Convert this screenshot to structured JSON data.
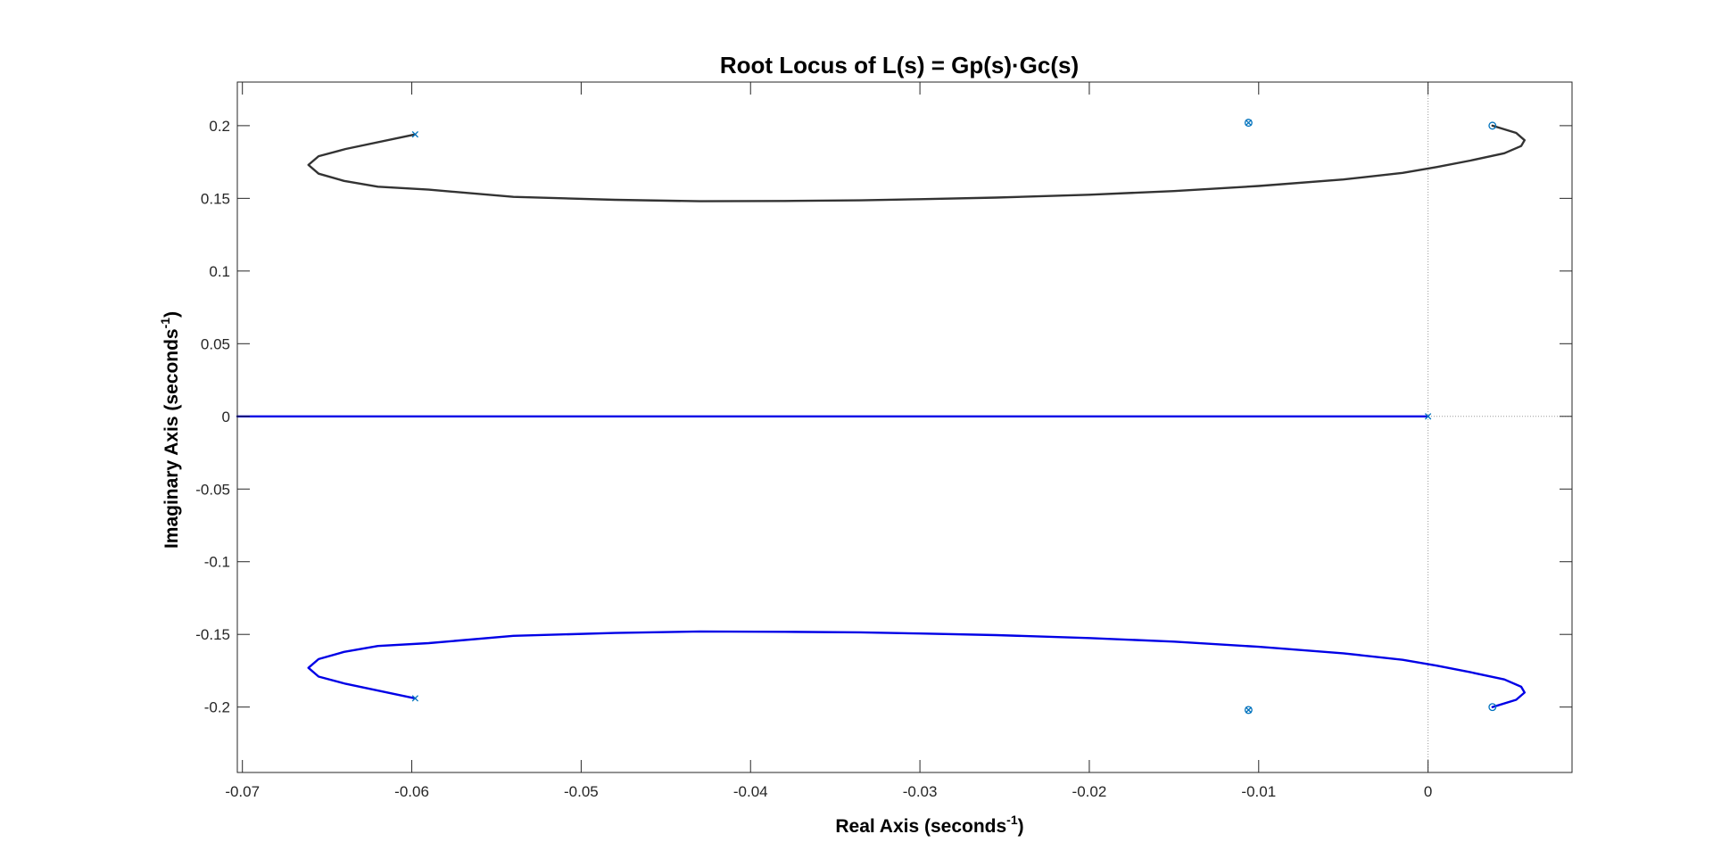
{
  "chart_data": {
    "type": "line",
    "title": "Root Locus of L(s) = Gp(s)·Gc(s)",
    "xlabel": {
      "text": "Real Axis (seconds",
      "sup": "-1",
      "suffix": ")"
    },
    "ylabel": {
      "text": "Imaginary Axis (seconds",
      "sup": "-1",
      "suffix": ")"
    },
    "xlim": [
      -0.0703,
      0.0085
    ],
    "ylim": [
      -0.245,
      0.23
    ],
    "xticks": [
      -0.07,
      -0.06,
      -0.05,
      -0.04,
      -0.03,
      -0.02,
      -0.01,
      0
    ],
    "xtick_labels": [
      "-0.07",
      "-0.06",
      "-0.05",
      "-0.04",
      "-0.03",
      "-0.02",
      "-0.01",
      "0"
    ],
    "yticks": [
      0.2,
      0.15,
      0.1,
      0.05,
      0,
      -0.05,
      -0.1,
      -0.15,
      -0.2
    ],
    "ytick_labels": [
      "0.2",
      "0.15",
      "0.1",
      "0.05",
      "0",
      "-0.05",
      "-0.1",
      "-0.15",
      "-0.2"
    ],
    "grid": false,
    "colors": {
      "upper_branch": "#333333",
      "lower_branch": "#0000e6",
      "real_axis_branch": "#0000e6",
      "markers": "#0072bd",
      "reference_lines": "#9a9a9a"
    },
    "series": [
      {
        "x": [
          -0.0598,
          -0.0639,
          -0.0655,
          -0.0661,
          -0.0655,
          -0.064,
          -0.062,
          -0.059,
          -0.054,
          -0.048,
          -0.043,
          -0.038,
          -0.0335,
          -0.03,
          -0.0255,
          -0.02,
          -0.015,
          -0.01,
          -0.005,
          -0.0015,
          0.0005,
          0.0025,
          0.0045,
          0.0055,
          0.0057,
          0.0052,
          0.0038
        ],
        "y": [
          0.194,
          0.184,
          0.179,
          0.173,
          0.167,
          0.162,
          0.158,
          0.156,
          0.151,
          0.149,
          0.148,
          0.1482,
          0.1486,
          0.1494,
          0.1505,
          0.1525,
          0.155,
          0.1585,
          0.163,
          0.1675,
          0.1715,
          0.176,
          0.181,
          0.186,
          0.19,
          0.195,
          0.2
        ]
      },
      {
        "x": [
          -0.0598,
          -0.0639,
          -0.0655,
          -0.0661,
          -0.0655,
          -0.064,
          -0.062,
          -0.059,
          -0.054,
          -0.048,
          -0.043,
          -0.038,
          -0.0335,
          -0.03,
          -0.0255,
          -0.02,
          -0.015,
          -0.01,
          -0.005,
          -0.0015,
          0.0005,
          0.0025,
          0.0045,
          0.0055,
          0.0057,
          0.0052,
          0.0038
        ],
        "y": [
          -0.194,
          -0.184,
          -0.179,
          -0.173,
          -0.167,
          -0.162,
          -0.158,
          -0.156,
          -0.151,
          -0.149,
          -0.148,
          -0.1482,
          -0.1486,
          -0.1494,
          -0.1505,
          -0.1525,
          -0.155,
          -0.1585,
          -0.163,
          -0.1675,
          -0.1715,
          -0.176,
          -0.181,
          -0.186,
          -0.19,
          -0.195,
          -0.2
        ]
      },
      {
        "x": [
          -0.0703,
          0
        ],
        "y": [
          0,
          0
        ]
      }
    ],
    "poles": [
      {
        "x": -0.0598,
        "y": 0.194
      },
      {
        "x": -0.0598,
        "y": -0.194
      },
      {
        "x": 0,
        "y": 0
      },
      {
        "x": -0.0106,
        "y": 0.202
      },
      {
        "x": -0.0106,
        "y": -0.202
      }
    ],
    "zeros": [
      {
        "x": 0.0038,
        "y": 0.2
      },
      {
        "x": 0.0038,
        "y": -0.2
      },
      {
        "x": -0.0106,
        "y": 0.202
      },
      {
        "x": -0.0106,
        "y": -0.202
      }
    ]
  }
}
